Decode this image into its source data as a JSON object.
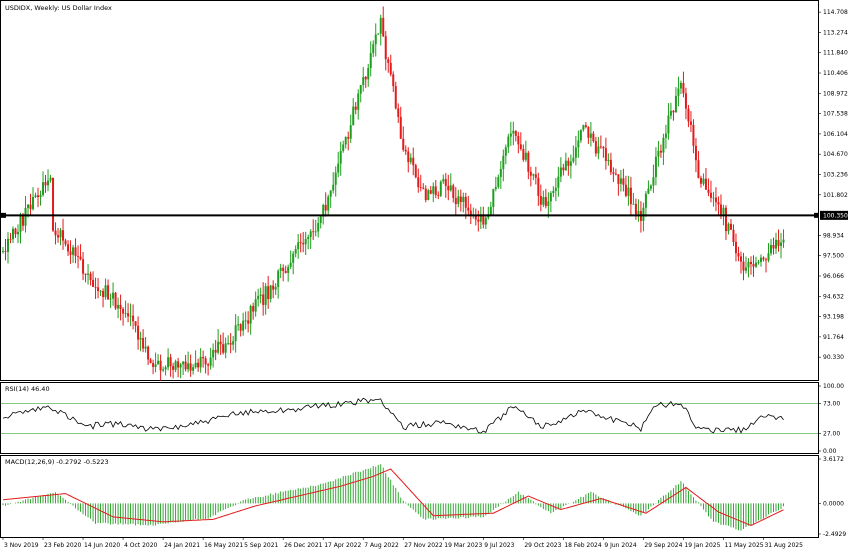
{
  "chart_data": [
    {
      "type": "candlestick",
      "title": "USDIDX, Weekly:  US Dollar Index",
      "x_start": "2019-11-03",
      "x_end": "2025-11-02",
      "ylim": [
        89.0,
        115.0
      ],
      "y_ticks": [
        "114.708",
        "113.274",
        "111.840",
        "110.406",
        "108.972",
        "107.538",
        "106.104",
        "104.670",
        "103.236",
        "101.802",
        "100.368",
        "98.934",
        "97.500",
        "96.066",
        "94.632",
        "93.198",
        "91.764",
        "90.330"
      ],
      "x_ticks": [
        "3 Nov 2019",
        "23 Feb 2020",
        "14 Jun 2020",
        "4 Oct 2020",
        "24 Jan 2021",
        "16 May 2021",
        "5 Sep 2021",
        "26 Dec 2021",
        "17 Apr 2022",
        "7 Aug 2022",
        "27 Nov 2022",
        "19 Mar 2023",
        "9 Jul 2023",
        "29 Oct 2023",
        "18 Feb 2024",
        "9 Jun 2024",
        "29 Sep 2024",
        "19 Jan 2025",
        "11 May 2025",
        "31 Aug 2025"
      ],
      "current_price_label": "100.350",
      "current_price": 100.35,
      "up_color": "#1e9e1e",
      "down_color": "#e31a1a",
      "series": [
        {
          "name": "USDIDX",
          "x": [
            "2019-11-03",
            "2020-03-15",
            "2020-03-22",
            "2020-06-14",
            "2020-10-04",
            "2021-01-03",
            "2021-05-23",
            "2021-09-05",
            "2021-12-26",
            "2022-04-17",
            "2022-09-25",
            "2022-11-27",
            "2023-01-29",
            "2023-03-19",
            "2023-07-09",
            "2023-10-01",
            "2023-12-24",
            "2024-04-14",
            "2024-06-09",
            "2024-09-22",
            "2025-01-12",
            "2025-03-02",
            "2025-05-11",
            "2025-06-29",
            "2025-09-14",
            "2025-10-26"
          ],
          "close": [
            97.8,
            103.5,
            99.5,
            96.5,
            93.7,
            89.8,
            89.9,
            92.7,
            96.4,
            100.5,
            113.9,
            105.0,
            101.5,
            102.5,
            99.7,
            106.5,
            101.2,
            106.2,
            104.6,
            100.4,
            109.8,
            103.5,
            100.3,
            96.8,
            97.5,
            99.2
          ]
        }
      ]
    },
    {
      "type": "line",
      "title": "RSI(14) 46.40",
      "ylim": [
        0,
        100
      ],
      "y_ticks": [
        "100.00",
        "73.00",
        "27.00",
        "0.00"
      ],
      "levels": [
        73,
        27
      ],
      "series": [
        {
          "x": [
            "2019-11-03",
            "2020-03-15",
            "2020-06-14",
            "2020-10-04",
            "2021-01-03",
            "2021-05-23",
            "2021-09-05",
            "2021-12-26",
            "2022-04-17",
            "2022-09-25",
            "2022-11-27",
            "2023-03-19",
            "2023-07-09",
            "2023-10-01",
            "2023-12-24",
            "2024-04-14",
            "2024-09-22",
            "2024-10-27",
            "2025-01-12",
            "2025-03-02",
            "2025-06-29",
            "2025-09-14",
            "2025-10-26"
          ],
          "values": [
            52,
            68,
            38,
            42,
            32,
            45,
            60,
            63,
            70,
            79,
            37,
            45,
            30,
            68,
            37,
            63,
            35,
            70,
            75,
            32,
            32,
            58,
            46.4
          ]
        }
      ]
    },
    {
      "type": "bar+line",
      "title": "MACD(12,26,9) -0.2792 -0.5223",
      "ylim": [
        -2.4929,
        3.6172
      ],
      "y_ticks": [
        "3.6172",
        "0.0000",
        "-2.4929"
      ],
      "series": [
        {
          "name": "MACD",
          "x": [
            "2019-11-03",
            "2020-03-29",
            "2020-07-19",
            "2020-12-27",
            "2021-05-30",
            "2021-09-12",
            "2022-01-02",
            "2022-04-17",
            "2022-09-25",
            "2022-11-27",
            "2023-01-22",
            "2023-07-09",
            "2023-10-15",
            "2024-01-14",
            "2024-05-05",
            "2024-09-22",
            "2025-01-12",
            "2025-04-13",
            "2025-06-29",
            "2025-10-26"
          ],
          "values": [
            -0.2,
            0.9,
            -1.6,
            -1.8,
            -1.2,
            0.3,
            1.0,
            1.6,
            3.2,
            0.2,
            -1.3,
            -1.1,
            0.9,
            -0.8,
            0.9,
            -1.0,
            1.8,
            -1.5,
            -2.2,
            -0.28
          ]
        },
        {
          "name": "Signal",
          "x": [
            "2019-11-03",
            "2020-04-26",
            "2020-09-06",
            "2021-01-24",
            "2021-06-13",
            "2021-10-10",
            "2022-02-06",
            "2022-06-05",
            "2022-09-04",
            "2022-10-23",
            "2023-02-19",
            "2023-08-06",
            "2023-11-12",
            "2024-02-11",
            "2024-06-02",
            "2024-10-06",
            "2025-01-26",
            "2025-04-27",
            "2025-07-27",
            "2025-10-26"
          ],
          "values": [
            0.3,
            0.8,
            -1.1,
            -1.5,
            -1.3,
            -0.2,
            0.6,
            1.4,
            2.2,
            2.8,
            -1.0,
            -0.8,
            0.6,
            -0.5,
            0.4,
            -0.8,
            1.3,
            -0.7,
            -1.8,
            -0.52
          ]
        }
      ]
    }
  ]
}
